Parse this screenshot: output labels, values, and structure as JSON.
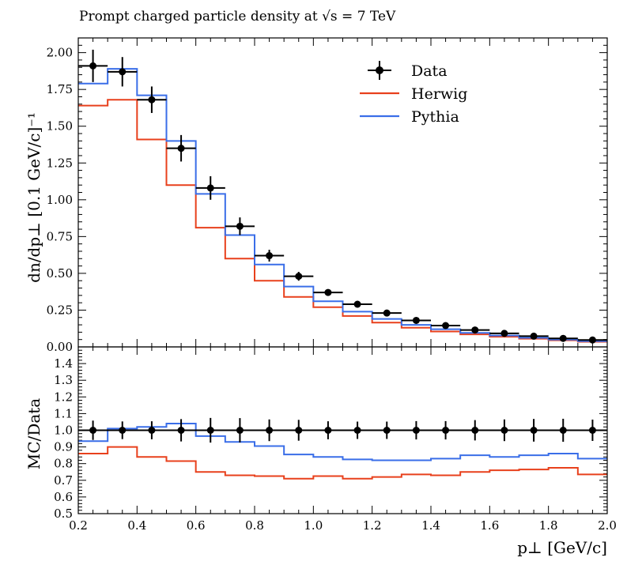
{
  "title": "Prompt charged particle density at √s = 7 TeV",
  "chart_data": [
    {
      "type": "line",
      "panel": "main",
      "title": "Prompt charged particle density at √s = 7 TeV",
      "xlabel": "p⊥ [GeV/c]",
      "ylabel": "dn/dp⊥ [0.1 GeV/c]⁻¹",
      "xlim": [
        0.2,
        2.0
      ],
      "ylim": [
        0.0,
        2.1
      ],
      "yticks": [
        "0.00",
        "0.25",
        "0.50",
        "0.75",
        "1.00",
        "1.25",
        "1.50",
        "1.75",
        "2.00"
      ],
      "legend_position": "top-right",
      "bin_edges": [
        0.2,
        0.3,
        0.4,
        0.5,
        0.6,
        0.7,
        0.8,
        0.9,
        1.0,
        1.1,
        1.2,
        1.3,
        1.4,
        1.5,
        1.6,
        1.7,
        1.8,
        1.9,
        2.0
      ],
      "series": [
        {
          "name": "Data",
          "style": "points",
          "color": "#000000",
          "values": [
            1.91,
            1.87,
            1.68,
            1.35,
            1.08,
            0.82,
            0.62,
            0.48,
            0.37,
            0.29,
            0.23,
            0.18,
            0.145,
            0.115,
            0.092,
            0.073,
            0.058,
            0.047
          ],
          "errors": [
            0.11,
            0.1,
            0.09,
            0.09,
            0.08,
            0.06,
            0.04,
            0.03,
            0.02,
            0.015,
            0.012,
            0.01,
            0.008,
            0.007,
            0.006,
            0.005,
            0.004,
            0.003
          ]
        },
        {
          "name": "Herwig",
          "style": "step",
          "color": "#e8401c",
          "values": [
            1.64,
            1.68,
            1.41,
            1.1,
            0.81,
            0.6,
            0.45,
            0.34,
            0.27,
            0.21,
            0.165,
            0.13,
            0.105,
            0.085,
            0.069,
            0.056,
            0.045,
            0.035
          ]
        },
        {
          "name": "Pythia",
          "style": "step",
          "color": "#3a6ee8",
          "values": [
            1.79,
            1.89,
            1.71,
            1.4,
            1.04,
            0.76,
            0.56,
            0.41,
            0.31,
            0.24,
            0.19,
            0.15,
            0.12,
            0.095,
            0.077,
            0.062,
            0.05,
            0.039
          ]
        }
      ]
    },
    {
      "type": "line",
      "panel": "ratio",
      "xlabel": "p⊥ [GeV/c]",
      "ylabel": "MC/Data",
      "xlim": [
        0.2,
        2.0
      ],
      "ylim": [
        0.5,
        1.5
      ],
      "xticks": [
        "0.2",
        "0.4",
        "0.6",
        "0.8",
        "1.0",
        "1.2",
        "1.4",
        "1.6",
        "1.8",
        "2.0"
      ],
      "yticks": [
        "0.5",
        "0.6",
        "0.7",
        "0.8",
        "0.9",
        "1.0",
        "1.1",
        "1.2",
        "1.3",
        "1.4"
      ],
      "bin_edges": [
        0.2,
        0.3,
        0.4,
        0.5,
        0.6,
        0.7,
        0.8,
        0.9,
        1.0,
        1.1,
        1.2,
        1.3,
        1.4,
        1.5,
        1.6,
        1.7,
        1.8,
        1.9,
        2.0
      ],
      "series": [
        {
          "name": "Data",
          "style": "points",
          "color": "#000000",
          "values": [
            1.0,
            1.0,
            1.0,
            1.0,
            1.0,
            1.0,
            1.0,
            1.0,
            1.0,
            1.0,
            1.0,
            1.0,
            1.0,
            1.0,
            1.0,
            1.0,
            1.0,
            1.0
          ],
          "errors": [
            0.058,
            0.053,
            0.054,
            0.067,
            0.074,
            0.073,
            0.065,
            0.0625,
            0.054,
            0.052,
            0.052,
            0.055,
            0.055,
            0.061,
            0.065,
            0.068,
            0.069,
            0.064
          ]
        },
        {
          "name": "Herwig",
          "style": "step",
          "color": "#e8401c",
          "values": [
            0.86,
            0.9,
            0.84,
            0.815,
            0.75,
            0.73,
            0.725,
            0.71,
            0.725,
            0.71,
            0.72,
            0.735,
            0.73,
            0.75,
            0.76,
            0.765,
            0.775,
            0.735
          ]
        },
        {
          "name": "Pythia",
          "style": "step",
          "color": "#3a6ee8",
          "values": [
            0.935,
            1.01,
            1.02,
            1.04,
            0.965,
            0.93,
            0.905,
            0.855,
            0.84,
            0.825,
            0.82,
            0.82,
            0.83,
            0.85,
            0.84,
            0.85,
            0.86,
            0.83
          ]
        }
      ]
    }
  ]
}
